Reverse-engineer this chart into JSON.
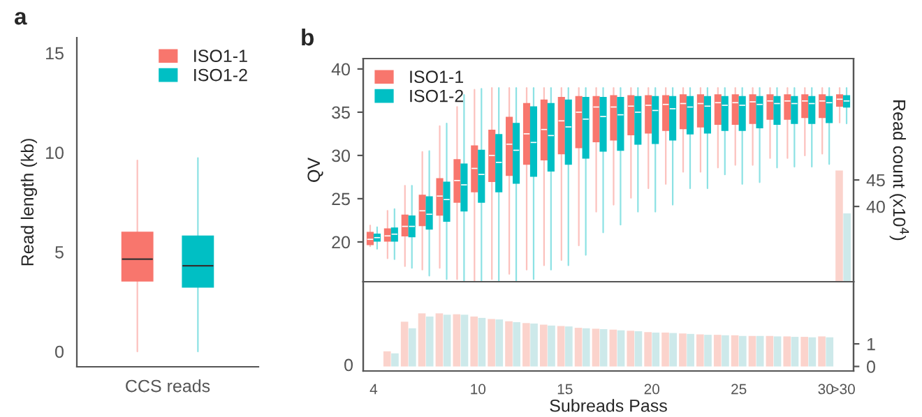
{
  "chart_data": [
    {
      "type": "box",
      "title": "a",
      "ylabel": "Read length (kb)",
      "categories": [
        "CCS reads"
      ],
      "ylim": [
        -0.77,
        15.77
      ],
      "yticks": [
        0,
        5,
        10,
        15
      ],
      "legend": "top right",
      "grid": false,
      "series": [
        {
          "name": "ISO1-1",
          "color": "#f8766d",
          "boxes": [
            {
              "low": 0,
              "q1": 3.54,
              "median": 4.64,
              "q3": 5.99,
              "high": 9.6
            }
          ]
        },
        {
          "name": "ISO1-2",
          "color": "#00bfc4",
          "boxes": [
            {
              "low": 0,
              "q1": 3.24,
              "median": 4.31,
              "q3": 5.8,
              "high": 9.72
            }
          ]
        }
      ]
    },
    {
      "type": "box",
      "title": "b",
      "ylabel": "QV",
      "y2label": "Read count (x10$^{4}$)",
      "categories": [
        null,
        null,
        null,
        null,
        null,
        null,
        null,
        null,
        null,
        null,
        null,
        null,
        null,
        null,
        null,
        null,
        null,
        null,
        null,
        null,
        null,
        null,
        null,
        null,
        null,
        null,
        null,
        null
      ],
      "ylim": [
        15.4,
        41.2
      ],
      "yticks": [
        20,
        25,
        30,
        35,
        40
      ],
      "y2lim": [
        25.8,
        67.9
      ],
      "y2ticks": [
        40,
        45
      ],
      "tick_labels": "y",
      "legend": "top left",
      "grid": false,
      "series": [
        {
          "name": "ISO1-1",
          "color": "#f8766d",
          "boxes": [
            {
              "low": 19.5,
              "q1": 19.7,
              "median": 20.3,
              "q3": 21.1,
              "high": 21.9
            },
            {
              "low": 18.1,
              "q1": 20.1,
              "median": 20.7,
              "q3": 21.5,
              "high": 23.6
            },
            {
              "low": 17.2,
              "q1": 20.7,
              "median": 21.8,
              "q3": 23.1,
              "high": 26.5
            },
            {
              "low": 16.8,
              "q1": 21.9,
              "median": 23.6,
              "q3": 25.4,
              "high": 30.4
            },
            {
              "low": 17.0,
              "q1": 23.1,
              "median": 25.3,
              "q3": 27.3,
              "high": 33.4
            },
            {
              "low": 15.7,
              "q1": 24.6,
              "median": 27.1,
              "q3": 29.5,
              "high": 35.6
            },
            {
              "low": 15.5,
              "q1": 25.8,
              "median": 28.5,
              "q3": 31.1,
              "high": 37.6
            },
            {
              "low": 15.7,
              "q1": 27.0,
              "median": 30.0,
              "q3": 32.9,
              "high": 37.8
            },
            {
              "low": 16.3,
              "q1": 27.7,
              "median": 31.3,
              "q3": 34.4,
              "high": 37.8
            },
            {
              "low": 16.8,
              "q1": 29.0,
              "median": 32.5,
              "q3": 36.0,
              "high": 37.8
            },
            {
              "low": 17.3,
              "q1": 29.5,
              "median": 33.0,
              "q3": 36.4,
              "high": 37.8
            },
            {
              "low": 17.9,
              "q1": 30.2,
              "median": 34.0,
              "q3": 36.7,
              "high": 37.8
            },
            {
              "low": 19.6,
              "q1": 30.9,
              "median": 35.0,
              "q3": 36.8,
              "high": 37.8
            },
            {
              "low": 23.5,
              "q1": 31.6,
              "median": 35.6,
              "q3": 36.8,
              "high": 37.8
            },
            {
              "low": 24.3,
              "q1": 31.8,
              "median": 35.6,
              "q3": 36.9,
              "high": 37.8
            },
            {
              "low": 25.1,
              "q1": 32.4,
              "median": 35.7,
              "q3": 36.9,
              "high": 37.8
            },
            {
              "low": 26.2,
              "q1": 32.6,
              "median": 35.8,
              "q3": 36.9,
              "high": 37.8
            },
            {
              "low": 26.7,
              "q1": 32.9,
              "median": 35.9,
              "q3": 36.9,
              "high": 37.8
            },
            {
              "low": 28.1,
              "q1": 33.1,
              "median": 36.0,
              "q3": 37.0,
              "high": 37.8
            },
            {
              "low": 28.1,
              "q1": 33.3,
              "median": 36.0,
              "q3": 37.0,
              "high": 37.8
            },
            {
              "low": 28.6,
              "q1": 33.6,
              "median": 36.1,
              "q3": 37.0,
              "high": 37.8
            },
            {
              "low": 28.9,
              "q1": 33.6,
              "median": 36.1,
              "q3": 37.0,
              "high": 37.8
            },
            {
              "low": 28.9,
              "q1": 33.7,
              "median": 36.2,
              "q3": 37.0,
              "high": 37.8
            },
            {
              "low": 29.7,
              "q1": 34.2,
              "median": 36.3,
              "q3": 37.0,
              "high": 37.8
            },
            {
              "low": 29.7,
              "q1": 34.2,
              "median": 36.3,
              "q3": 37.0,
              "high": 37.8
            },
            {
              "low": 30.0,
              "q1": 34.4,
              "median": 36.3,
              "q3": 37.0,
              "high": 37.8
            },
            {
              "low": 30.2,
              "q1": 34.4,
              "median": 36.3,
              "q3": 37.0,
              "high": 37.8
            },
            {
              "low": 33.8,
              "q1": 35.7,
              "median": 36.5,
              "q3": 37.0,
              "high": 37.8
            }
          ]
        },
        {
          "name": "ISO1-2",
          "color": "#00bfc4",
          "boxes": [
            {
              "low": 19.2,
              "q1": 20.1,
              "median": 20.5,
              "q3": 20.9,
              "high": 21.7
            },
            {
              "low": 18.0,
              "q1": 20.1,
              "median": 20.9,
              "q3": 21.6,
              "high": 23.8
            },
            {
              "low": 17.0,
              "q1": 20.6,
              "median": 21.8,
              "q3": 23.0,
              "high": 26.5
            },
            {
              "low": 16.1,
              "q1": 21.5,
              "median": 23.2,
              "q3": 25.2,
              "high": 30.5
            },
            {
              "low": 15.7,
              "q1": 22.4,
              "median": 24.9,
              "q3": 26.9,
              "high": 33.7
            },
            {
              "low": 15.4,
              "q1": 23.6,
              "median": 26.6,
              "q3": 29.0,
              "high": 37.0
            },
            {
              "low": 15.3,
              "q1": 24.6,
              "median": 27.8,
              "q3": 30.6,
              "high": 37.7
            },
            {
              "low": 15.4,
              "q1": 25.8,
              "median": 29.2,
              "q3": 32.4,
              "high": 37.8
            },
            {
              "low": 15.4,
              "q1": 26.8,
              "median": 30.6,
              "q3": 33.7,
              "high": 37.8
            },
            {
              "low": 15.7,
              "q1": 27.6,
              "median": 31.5,
              "q3": 35.6,
              "high": 37.8
            },
            {
              "low": 16.8,
              "q1": 28.2,
              "median": 32.3,
              "q3": 36.0,
              "high": 37.8
            },
            {
              "low": 17.3,
              "q1": 29.0,
              "median": 33.3,
              "q3": 36.4,
              "high": 37.8
            },
            {
              "low": 18.5,
              "q1": 29.7,
              "median": 34.2,
              "q3": 36.7,
              "high": 37.8
            },
            {
              "low": 21.1,
              "q1": 30.5,
              "median": 34.5,
              "q3": 36.7,
              "high": 37.8
            },
            {
              "low": 22.0,
              "q1": 30.6,
              "median": 34.7,
              "q3": 36.7,
              "high": 37.8
            },
            {
              "low": 23.5,
              "q1": 31.3,
              "median": 35.0,
              "q3": 36.8,
              "high": 37.8
            },
            {
              "low": 23.5,
              "q1": 31.4,
              "median": 35.2,
              "q3": 36.8,
              "high": 37.8
            },
            {
              "low": 24.3,
              "q1": 31.8,
              "median": 35.4,
              "q3": 36.8,
              "high": 37.8
            },
            {
              "low": 26.2,
              "q1": 32.5,
              "median": 35.6,
              "q3": 36.8,
              "high": 37.8
            },
            {
              "low": 26.2,
              "q1": 32.6,
              "median": 35.7,
              "q3": 36.8,
              "high": 37.8
            },
            {
              "low": 27.8,
              "q1": 32.9,
              "median": 35.8,
              "q3": 36.8,
              "high": 37.8
            },
            {
              "low": 26.7,
              "q1": 32.9,
              "median": 35.8,
              "q3": 36.8,
              "high": 37.8
            },
            {
              "low": 26.9,
              "q1": 33.2,
              "median": 35.9,
              "q3": 36.8,
              "high": 37.8
            },
            {
              "low": 28.6,
              "q1": 33.6,
              "median": 36.0,
              "q3": 36.8,
              "high": 37.8
            },
            {
              "low": 28.7,
              "q1": 33.7,
              "median": 36.0,
              "q3": 36.8,
              "high": 37.8
            },
            {
              "low": 28.7,
              "q1": 33.7,
              "median": 36.0,
              "q3": 36.8,
              "high": 37.8
            },
            {
              "low": 29.0,
              "q1": 33.8,
              "median": 36.1,
              "q3": 36.8,
              "high": 37.8
            },
            {
              "low": 33.7,
              "q1": 35.6,
              "median": 36.3,
              "q3": 36.9,
              "high": 37.8
            }
          ]
        },
        {
          "type": "bar",
          "axis": "y2",
          "color": "#fbd3cc",
          "values": [
            null,
            null,
            null,
            null,
            null,
            null,
            null,
            null,
            null,
            null,
            null,
            null,
            null,
            null,
            null,
            null,
            null,
            null,
            null,
            null,
            null,
            null,
            null,
            null,
            null,
            null,
            null,
            46.8
          ]
        },
        {
          "type": "bar",
          "axis": "y2",
          "color": "#cde9ea",
          "values": [
            null,
            null,
            null,
            null,
            null,
            null,
            null,
            null,
            null,
            null,
            null,
            null,
            null,
            null,
            null,
            null,
            null,
            null,
            null,
            null,
            null,
            null,
            null,
            null,
            null,
            null,
            null,
            38.7
          ]
        }
      ]
    },
    {
      "type": "bar",
      "xlabel": "Subreads Pass",
      "categories": [
        "4",
        null,
        null,
        null,
        null,
        null,
        "10",
        null,
        null,
        null,
        null,
        "15",
        null,
        null,
        null,
        null,
        "20",
        null,
        null,
        null,
        null,
        "25",
        null,
        null,
        null,
        null,
        "30",
        ">30"
      ],
      "annotations": [
        "0"
      ],
      "y2lim": [
        -0.2,
        3.75
      ],
      "y2ticks": [
        0,
        1
      ],
      "grid": false,
      "series": [
        {
          "axis": "y2",
          "color": "#fbd3cc",
          "values": [
            null,
            0.67,
            1.98,
            2.35,
            2.35,
            2.31,
            2.21,
            2.1,
            2.0,
            1.92,
            1.85,
            1.79,
            1.71,
            1.67,
            1.63,
            1.58,
            1.52,
            1.5,
            1.46,
            1.42,
            1.4,
            1.38,
            1.35,
            1.35,
            1.33,
            1.31,
            1.33,
            null
          ]
        },
        {
          "axis": "y2",
          "color": "#cde9ea",
          "values": [
            null,
            0.58,
            1.69,
            2.21,
            2.29,
            2.29,
            2.15,
            2.08,
            1.96,
            1.9,
            1.81,
            1.77,
            1.69,
            1.65,
            1.6,
            1.56,
            1.5,
            1.48,
            1.44,
            1.4,
            1.38,
            1.35,
            1.35,
            1.33,
            1.31,
            1.29,
            1.29,
            null
          ]
        }
      ]
    }
  ]
}
